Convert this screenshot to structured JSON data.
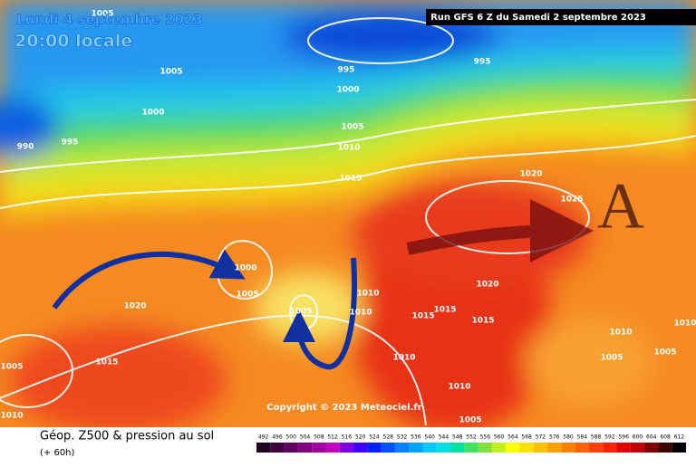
{
  "header": {
    "date": "Lundi 4 septembre 2023",
    "time": "20:00 locale",
    "run": "Run GFS 6 Z du Samedi 2 septembre 2023"
  },
  "isobar_labels": [
    "1005",
    "995",
    "995",
    "1000",
    "1005",
    "1000",
    "1005",
    "1010",
    "995",
    "990",
    "1015",
    "1020",
    "1025",
    "1000",
    "1005",
    "1010",
    "1005",
    "1010",
    "1020",
    "1015",
    "1015",
    "1015",
    "1020",
    "1015",
    "1005",
    "1010",
    "1010",
    "1010",
    "1005",
    "1005",
    "1010",
    "1010",
    "1005"
  ],
  "high_label": "A",
  "copyright": "Copyright © 2023 Meteociel.fr",
  "footer": {
    "title": "Géop. Z500 & pression au sol",
    "subtitle": "(+ 60h)"
  },
  "legend": [
    {
      "label": "492",
      "color": "#200020"
    },
    {
      "label": "496",
      "color": "#400040"
    },
    {
      "label": "500",
      "color": "#600060"
    },
    {
      "label": "504",
      "color": "#800080"
    },
    {
      "label": "508",
      "color": "#a000a0"
    },
    {
      "label": "512",
      "color": "#c000c0"
    },
    {
      "label": "516",
      "color": "#8000e0"
    },
    {
      "label": "520",
      "color": "#4000ff"
    },
    {
      "label": "524",
      "color": "#0020ff"
    },
    {
      "label": "528",
      "color": "#0050ff"
    },
    {
      "label": "532",
      "color": "#0080ff"
    },
    {
      "label": "536",
      "color": "#00a0ff"
    },
    {
      "label": "540",
      "color": "#00c8ff"
    },
    {
      "label": "544",
      "color": "#00e0e0"
    },
    {
      "label": "548",
      "color": "#00e0a0"
    },
    {
      "label": "552",
      "color": "#40e060"
    },
    {
      "label": "556",
      "color": "#80e040"
    },
    {
      "label": "560",
      "color": "#c0f020"
    },
    {
      "label": "564",
      "color": "#ffff00"
    },
    {
      "label": "568",
      "color": "#ffe000"
    },
    {
      "label": "572",
      "color": "#ffc000"
    },
    {
      "label": "576",
      "color": "#ffa000"
    },
    {
      "label": "580",
      "color": "#ff8000"
    },
    {
      "label": "584",
      "color": "#ff6000"
    },
    {
      "label": "588",
      "color": "#ff4000"
    },
    {
      "label": "592",
      "color": "#ff2000"
    },
    {
      "label": "596",
      "color": "#e00000"
    },
    {
      "label": "600",
      "color": "#c00000"
    },
    {
      "label": "604",
      "color": "#800000"
    },
    {
      "label": "608",
      "color": "#400000"
    },
    {
      "label": "612",
      "color": "#000000"
    }
  ]
}
